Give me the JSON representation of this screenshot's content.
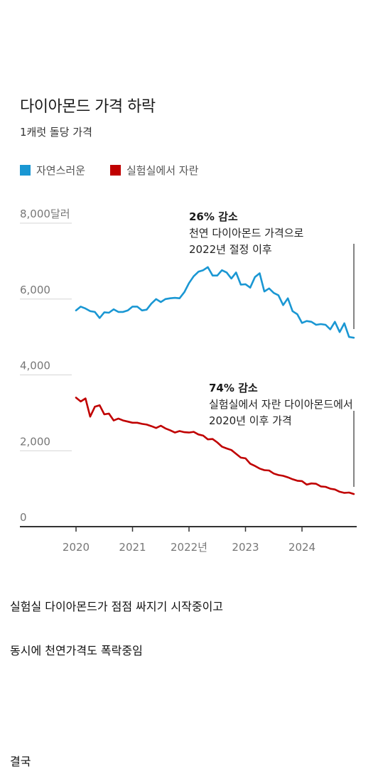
{
  "chart_data": {
    "type": "line",
    "title": "다이아몬드 가격 하락",
    "subtitle": "1캐럿 돌당 가격",
    "y_unit_label": "8,000달러",
    "ylim": [
      0,
      8000
    ],
    "yticks": [
      0,
      2000,
      4000,
      6000,
      8000
    ],
    "ytick_labels": [
      "0",
      "2,000",
      "4,000",
      "6,000",
      "8,000달러"
    ],
    "xlim": [
      2020,
      2025
    ],
    "xticks": [
      2020,
      2021,
      2022,
      2023,
      2024
    ],
    "xtick_labels": [
      "2020",
      "2021",
      "2022년",
      "2023",
      "2024"
    ],
    "grid": true,
    "legend_position": "top-left",
    "series": [
      {
        "name": "자연스러운",
        "color": "#1a97d3",
        "x": [
          2020.0,
          2020.083,
          2020.167,
          2020.25,
          2020.333,
          2020.417,
          2020.5,
          2020.583,
          2020.667,
          2020.75,
          2020.833,
          2020.917,
          2021.0,
          2021.083,
          2021.167,
          2021.25,
          2021.333,
          2021.417,
          2021.5,
          2021.583,
          2021.667,
          2021.75,
          2021.833,
          2021.917,
          2022.0,
          2022.083,
          2022.167,
          2022.25,
          2022.333,
          2022.417,
          2022.5,
          2022.583,
          2022.667,
          2022.75,
          2022.833,
          2022.917,
          2023.0,
          2023.083,
          2023.167,
          2023.25,
          2023.333,
          2023.417,
          2023.5,
          2023.583,
          2023.667,
          2023.75,
          2023.833,
          2023.917,
          2024.0,
          2024.083,
          2024.167,
          2024.25,
          2024.333,
          2024.417,
          2024.5,
          2024.583,
          2024.667,
          2024.75,
          2024.833,
          2024.917
        ],
        "y": [
          5700,
          5800,
          5750,
          5680,
          5660,
          5500,
          5650,
          5640,
          5730,
          5660,
          5660,
          5700,
          5800,
          5800,
          5700,
          5720,
          5880,
          6000,
          5920,
          6000,
          6020,
          6030,
          6020,
          6180,
          6420,
          6600,
          6720,
          6760,
          6840,
          6620,
          6620,
          6760,
          6700,
          6540,
          6700,
          6380,
          6390,
          6300,
          6580,
          6680,
          6200,
          6280,
          6160,
          6100,
          5840,
          6020,
          5680,
          5600,
          5370,
          5420,
          5400,
          5320,
          5340,
          5320,
          5200,
          5400,
          5130,
          5360,
          5000,
          4980
        ]
      },
      {
        "name": "실험실에서 자란",
        "color": "#c00000",
        "x": [
          2020.0,
          2020.083,
          2020.167,
          2020.25,
          2020.333,
          2020.417,
          2020.5,
          2020.583,
          2020.667,
          2020.75,
          2020.833,
          2020.917,
          2021.0,
          2021.083,
          2021.167,
          2021.25,
          2021.333,
          2021.417,
          2021.5,
          2021.583,
          2021.667,
          2021.75,
          2021.833,
          2021.917,
          2022.0,
          2022.083,
          2022.167,
          2022.25,
          2022.333,
          2022.417,
          2022.5,
          2022.583,
          2022.667,
          2022.75,
          2022.833,
          2022.917,
          2023.0,
          2023.083,
          2023.167,
          2023.25,
          2023.333,
          2023.417,
          2023.5,
          2023.583,
          2023.667,
          2023.75,
          2023.833,
          2023.917,
          2024.0,
          2024.083,
          2024.167,
          2024.25,
          2024.333,
          2024.417,
          2024.5,
          2024.583,
          2024.667,
          2024.75,
          2024.833,
          2024.917
        ],
        "y": [
          3400,
          3300,
          3380,
          2900,
          3160,
          3200,
          2960,
          2980,
          2800,
          2850,
          2800,
          2770,
          2740,
          2740,
          2710,
          2690,
          2650,
          2600,
          2660,
          2590,
          2540,
          2480,
          2520,
          2490,
          2480,
          2500,
          2430,
          2400,
          2300,
          2310,
          2220,
          2110,
          2060,
          2020,
          1920,
          1820,
          1800,
          1660,
          1600,
          1530,
          1490,
          1480,
          1400,
          1360,
          1340,
          1300,
          1250,
          1210,
          1200,
          1110,
          1140,
          1130,
          1060,
          1050,
          1000,
          980,
          920,
          890,
          900,
          860
        ]
      }
    ],
    "annotations": [
      {
        "headline": "26% 감소",
        "lines": [
          "천연 다이아몬드 가격으로",
          "2022년 절정 이후"
        ]
      },
      {
        "headline": "74% 감소",
        "lines": [
          "실험실에서 자란 다이아몬드에서",
          "2020년 이후 가격"
        ]
      }
    ]
  },
  "captions": [
    "실험실 다이아몬드가 점점 싸지기 시작중이고",
    "동시에 천연가격도 폭락중임",
    "결국"
  ],
  "colors": {
    "natural": "#1a97d3",
    "lab": "#c00000",
    "grid": "#d6d6d6",
    "axis": "#333333"
  }
}
